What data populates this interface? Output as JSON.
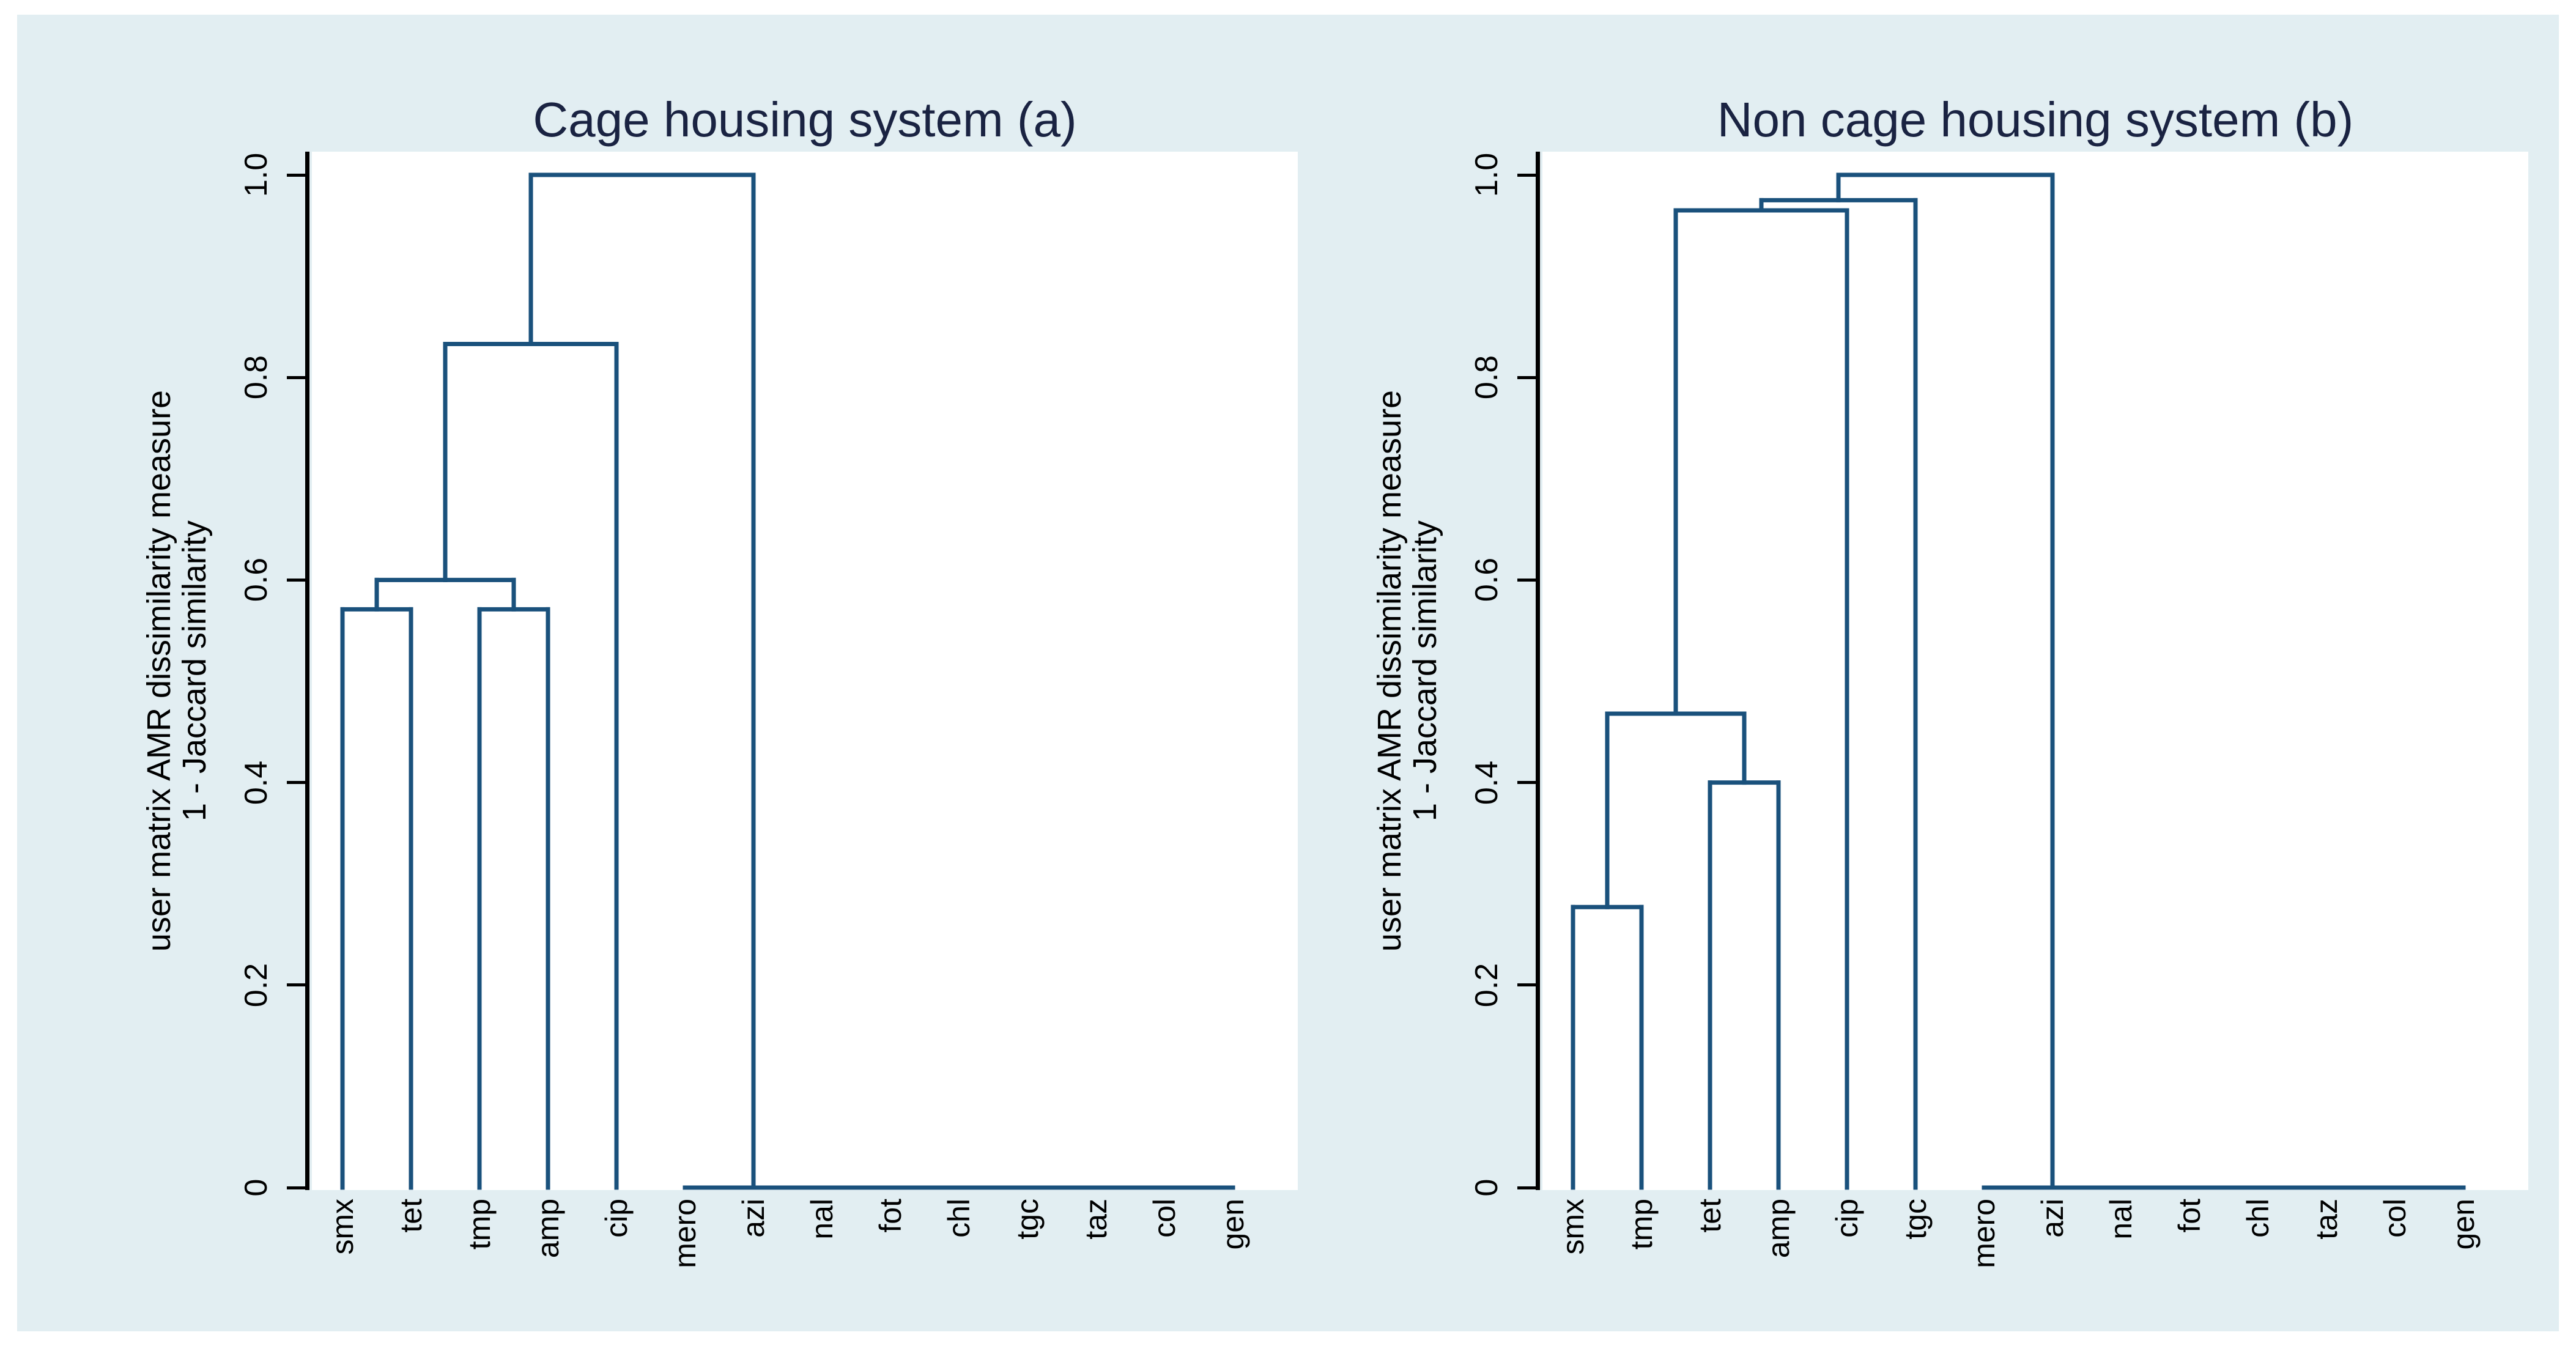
{
  "figure": {
    "background_color": "#e2eef2",
    "plot_background_color": "#ffffff",
    "line_color": "#1a517c",
    "title_color": "#1a2342",
    "axis_color": "#000000"
  },
  "chart_data": [
    {
      "type": "dendrogram",
      "title": "Cage housing system (a)",
      "ylabel": [
        "user matrix AMR dissimilarity measure",
        "1 - Jaccard similarity"
      ],
      "ylim": [
        0,
        1
      ],
      "yticks": {
        "values": [
          1.0,
          0.8,
          0.6,
          0.4,
          0.2,
          0
        ],
        "labels": [
          "1.0",
          "0.8",
          "0.6",
          "0.4",
          "0.2",
          "0"
        ]
      },
      "leaves": [
        "smx",
        "tet",
        "tmp",
        "amp",
        "cip",
        "mero",
        "azi",
        "nal",
        "fot",
        "chl",
        "tgc",
        "taz",
        "col",
        "gen"
      ],
      "tree": {
        "h": 1.0,
        "children": [
          {
            "h": 0.833,
            "children": [
              {
                "h": 0.6,
                "children": [
                  {
                    "h": 0.571,
                    "children": [
                      "smx",
                      "tet"
                    ]
                  },
                  {
                    "h": 0.571,
                    "children": [
                      "tmp",
                      "amp"
                    ]
                  }
                ]
              },
              "cip"
            ]
          },
          {
            "h": 0.0,
            "at": "azi",
            "children": [
              "mero",
              "azi",
              "nal",
              "fot",
              "chl",
              "tgc",
              "taz",
              "col",
              "gen"
            ]
          }
        ]
      }
    },
    {
      "type": "dendrogram",
      "title": "Non cage housing system (b)",
      "ylabel": [
        "user matrix AMR dissimilarity measure",
        "1 - Jaccard similarity"
      ],
      "ylim": [
        0,
        1
      ],
      "yticks": {
        "values": [
          1.0,
          0.8,
          0.6,
          0.4,
          0.2,
          0
        ],
        "labels": [
          "1.0",
          "0.8",
          "0.6",
          "0.4",
          "0.2",
          "0"
        ]
      },
      "leaves": [
        "smx",
        "tmp",
        "tet",
        "amp",
        "cip",
        "tgc",
        "mero",
        "azi",
        "nal",
        "fot",
        "chl",
        "taz",
        "col",
        "gen"
      ],
      "tree": {
        "h": 1.0,
        "children": [
          {
            "h": 0.975,
            "children": [
              {
                "h": 0.965,
                "children": [
                  {
                    "h": 0.468,
                    "children": [
                      {
                        "h": 0.277,
                        "children": [
                          "smx",
                          "tmp"
                        ]
                      },
                      {
                        "h": 0.4,
                        "children": [
                          "tet",
                          "amp"
                        ]
                      }
                    ]
                  },
                  "cip"
                ]
              },
              "tgc"
            ]
          },
          {
            "h": 0.0,
            "at": "azi",
            "children": [
              "mero",
              "azi",
              "nal",
              "fot",
              "chl",
              "taz",
              "col",
              "gen"
            ]
          }
        ]
      }
    }
  ]
}
